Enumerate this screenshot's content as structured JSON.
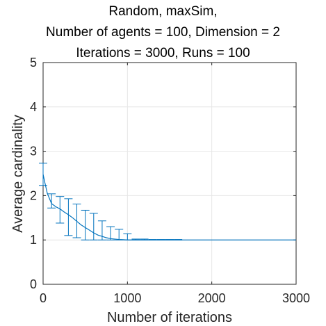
{
  "chart_data": {
    "type": "line",
    "title_lines": [
      "Random, maxSim,",
      "Number of agents = 100, Dimension = 2",
      "Iterations = 3000, Runs = 100"
    ],
    "xlabel": "Number of iterations",
    "ylabel": "Average cardinality",
    "xlim": [
      0,
      3000
    ],
    "ylim": [
      0,
      5
    ],
    "xticks": [
      0,
      1000,
      2000,
      3000
    ],
    "yticks": [
      0,
      1,
      2,
      3,
      4,
      5
    ],
    "grid": true,
    "color": "#0072BD",
    "series": [
      {
        "x": [
          0,
          20,
          50,
          100,
          150,
          200,
          250,
          300,
          350,
          400,
          450,
          500,
          550,
          600,
          650,
          700,
          750,
          800,
          850,
          900,
          950,
          1000,
          1100,
          1200,
          1400,
          1650,
          2000,
          3000
        ],
        "values": [
          2.48,
          2.3,
          2.05,
          1.82,
          1.75,
          1.7,
          1.63,
          1.57,
          1.5,
          1.42,
          1.34,
          1.28,
          1.22,
          1.16,
          1.11,
          1.08,
          1.05,
          1.03,
          1.02,
          1.01,
          1.005,
          1.0,
          1.0,
          1.0,
          1.0,
          1.0,
          1.0,
          1.0
        ]
      }
    ],
    "errorbars": [
      {
        "x": 0,
        "y": 2.48,
        "low": 2.23,
        "high": 2.73
      },
      {
        "x": 100,
        "y": 1.82,
        "low": 1.72,
        "high": 2.04
      },
      {
        "x": 200,
        "y": 1.7,
        "low": 1.38,
        "high": 1.98
      },
      {
        "x": 300,
        "y": 1.57,
        "low": 1.1,
        "high": 1.93
      },
      {
        "x": 400,
        "y": 1.42,
        "low": 1.05,
        "high": 1.81
      },
      {
        "x": 500,
        "y": 1.28,
        "low": 1.0,
        "high": 1.67
      },
      {
        "x": 600,
        "y": 1.16,
        "low": 1.0,
        "high": 1.6
      },
      {
        "x": 700,
        "y": 1.08,
        "low": 1.0,
        "high": 1.43
      },
      {
        "x": 800,
        "y": 1.03,
        "low": 1.0,
        "high": 1.3
      },
      {
        "x": 900,
        "y": 1.01,
        "low": 1.0,
        "high": 1.24
      },
      {
        "x": 1000,
        "y": 1.0,
        "low": 1.0,
        "high": 1.14
      },
      {
        "x": 1100,
        "y": 1.0,
        "low": 1.0,
        "high": 1.02
      },
      {
        "x": 1200,
        "y": 1.0,
        "low": 1.0,
        "high": 1.02
      },
      {
        "x": 1300,
        "y": 1.0,
        "low": 1.0,
        "high": 1.01
      },
      {
        "x": 1400,
        "y": 1.0,
        "low": 1.0,
        "high": 1.01
      },
      {
        "x": 1500,
        "y": 1.0,
        "low": 1.0,
        "high": 1.01
      },
      {
        "x": 1600,
        "y": 1.0,
        "low": 1.0,
        "high": 1.01
      }
    ]
  }
}
